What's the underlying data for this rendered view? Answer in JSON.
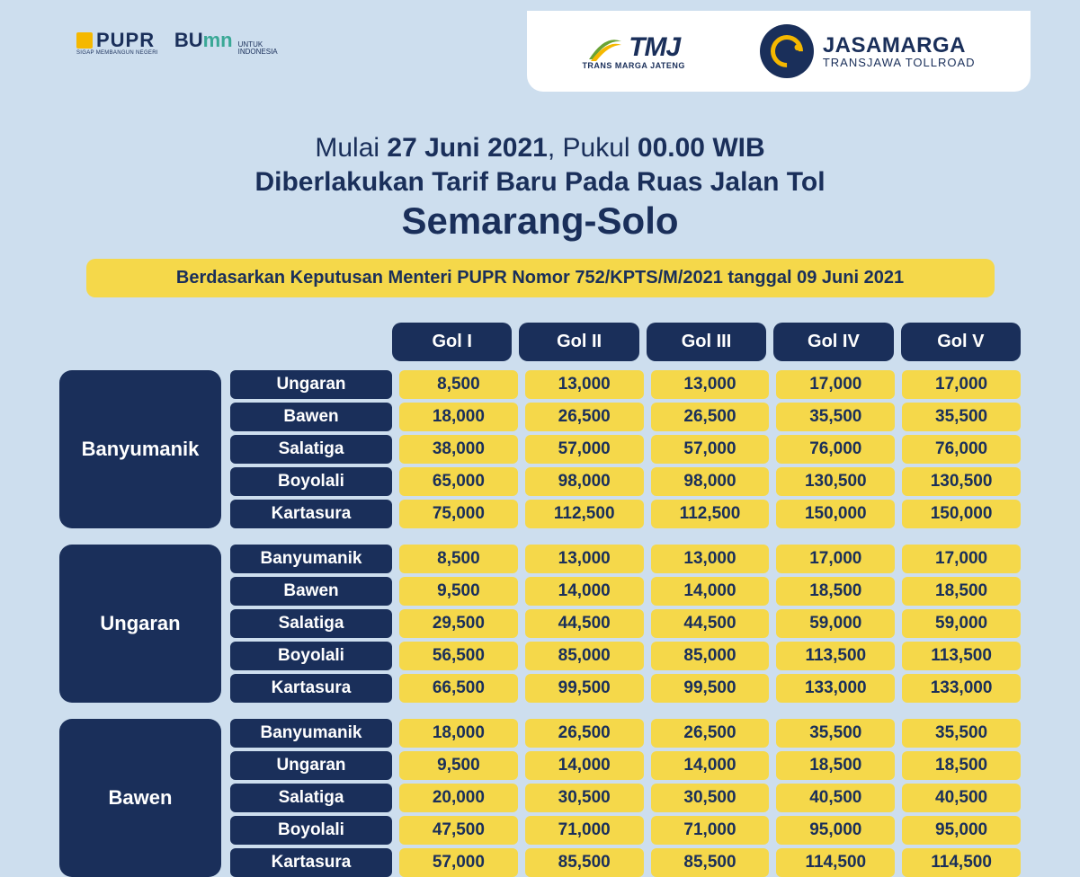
{
  "colors": {
    "page_bg": "#cddeee",
    "navy": "#1a2f5a",
    "yellow": "#f5d84a",
    "yellow_logo": "#f5b800",
    "teal": "#3aa896",
    "white": "#ffffff"
  },
  "typography": {
    "family": "Arial, Helvetica, sans-serif",
    "headline_small_pt": 30,
    "headline_large_pt": 42,
    "banner_pt": 20,
    "table_header_pt": 20,
    "table_cell_pt": 19,
    "origin_pt": 22
  },
  "logos": {
    "pupr": {
      "name": "PUPR",
      "tagline": "SIGAP MEMBANGUN NEGERI"
    },
    "bumn": {
      "prefix": "BU",
      "suffix": "mn",
      "tagline_top": "UNTUK",
      "tagline_bot": "INDONESIA"
    },
    "tmj": {
      "name": "TMJ",
      "tagline": "TRANS MARGA JATENG"
    },
    "jasamarga": {
      "name": "JASAMARGA",
      "tagline": "TRANSJAWA TOLLROAD"
    }
  },
  "headline": {
    "prefix": "Mulai ",
    "date_bold": "27 Juni 2021",
    "mid": ", Pukul ",
    "time_bold": "00.00 WIB",
    "line2": "Diberlakukan Tarif Baru Pada Ruas Jalan Tol",
    "line3": "Semarang-Solo"
  },
  "sub_banner": "Berdasarkan Keputusan Menteri PUPR  Nomor 752/KPTS/M/2021 tanggal 09 Juni 2021",
  "columns": [
    "Gol I",
    "Gol II",
    "Gol III",
    "Gol IV",
    "Gol V"
  ],
  "groups": [
    {
      "origin": "Banyumanik",
      "rows": [
        {
          "dest": "Ungaran",
          "vals": [
            "8,500",
            "13,000",
            "13,000",
            "17,000",
            "17,000"
          ]
        },
        {
          "dest": "Bawen",
          "vals": [
            "18,000",
            "26,500",
            "26,500",
            "35,500",
            "35,500"
          ]
        },
        {
          "dest": "Salatiga",
          "vals": [
            "38,000",
            "57,000",
            "57,000",
            "76,000",
            "76,000"
          ]
        },
        {
          "dest": "Boyolali",
          "vals": [
            "65,000",
            "98,000",
            "98,000",
            "130,500",
            "130,500"
          ]
        },
        {
          "dest": "Kartasura",
          "vals": [
            "75,000",
            "112,500",
            "112,500",
            "150,000",
            "150,000"
          ]
        }
      ]
    },
    {
      "origin": "Ungaran",
      "rows": [
        {
          "dest": "Banyumanik",
          "vals": [
            "8,500",
            "13,000",
            "13,000",
            "17,000",
            "17,000"
          ]
        },
        {
          "dest": "Bawen",
          "vals": [
            "9,500",
            "14,000",
            "14,000",
            "18,500",
            "18,500"
          ]
        },
        {
          "dest": "Salatiga",
          "vals": [
            "29,500",
            "44,500",
            "44,500",
            "59,000",
            "59,000"
          ]
        },
        {
          "dest": "Boyolali",
          "vals": [
            "56,500",
            "85,000",
            "85,000",
            "113,500",
            "113,500"
          ]
        },
        {
          "dest": "Kartasura",
          "vals": [
            "66,500",
            "99,500",
            "99,500",
            "133,000",
            "133,000"
          ]
        }
      ]
    },
    {
      "origin": "Bawen",
      "rows": [
        {
          "dest": "Banyumanik",
          "vals": [
            "18,000",
            "26,500",
            "26,500",
            "35,500",
            "35,500"
          ]
        },
        {
          "dest": "Ungaran",
          "vals": [
            "9,500",
            "14,000",
            "14,000",
            "18,500",
            "18,500"
          ]
        },
        {
          "dest": "Salatiga",
          "vals": [
            "20,000",
            "30,500",
            "30,500",
            "40,500",
            "40,500"
          ]
        },
        {
          "dest": "Boyolali",
          "vals": [
            "47,500",
            "71,000",
            "71,000",
            "95,000",
            "95,000"
          ]
        },
        {
          "dest": "Kartasura",
          "vals": [
            "57,000",
            "85,500",
            "85,500",
            "114,500",
            "114,500"
          ]
        }
      ]
    }
  ]
}
